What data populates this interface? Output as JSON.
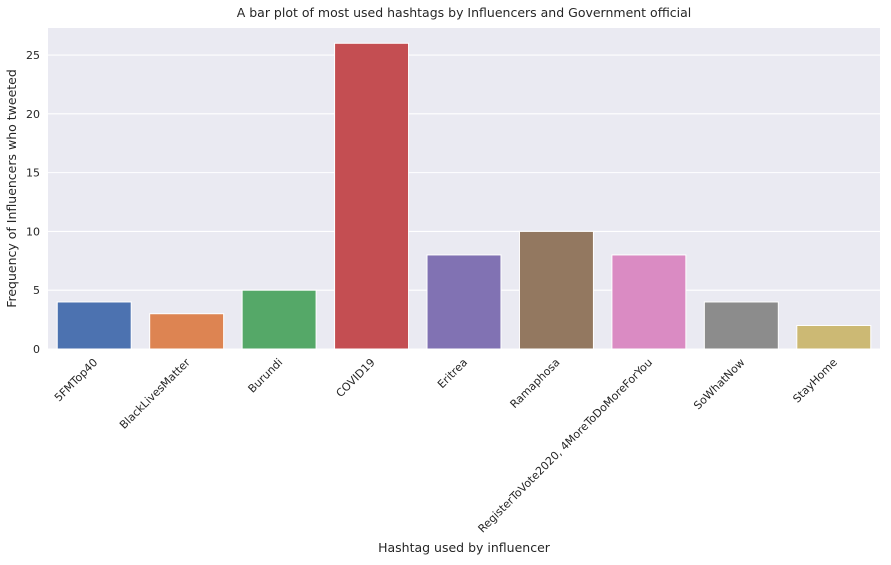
{
  "chart_data": {
    "type": "bar",
    "title": "A bar plot of most used hashtags by Influencers and Government official",
    "xlabel": "Hashtag used by influencer",
    "ylabel": "Frequency of  Influencers who tweeted",
    "categories": [
      "5FMTop40",
      "BlackLivesMatter",
      "Burundi",
      "COVID19",
      "Eritrea",
      "Ramaphosa",
      "RegisterToVote2020, 4MoreToDoMoreForYou",
      "SoWhatNow",
      "StayHome"
    ],
    "values": [
      4,
      3,
      5,
      26,
      8,
      10,
      8,
      4,
      2
    ],
    "colors": [
      "#4c72b0",
      "#dd8452",
      "#55a868",
      "#c44e52",
      "#8172b3",
      "#937860",
      "#da8bc3",
      "#8c8c8c",
      "#ccb974"
    ],
    "ylim": [
      0,
      27.3
    ],
    "yticks": [
      0,
      5,
      10,
      15,
      20,
      25
    ],
    "grid": true,
    "legend": "none",
    "background": "#eaeaf2",
    "grid_color": "#ffffff"
  }
}
